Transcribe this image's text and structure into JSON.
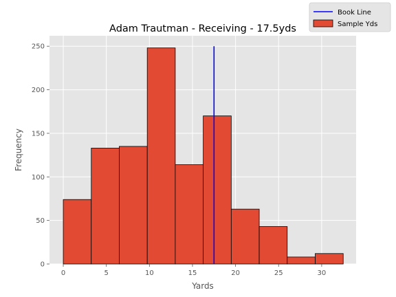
{
  "chart_data": {
    "type": "bar",
    "title": "Adam Trautman - Receiving - 17.5yds",
    "xlabel": "Yards",
    "ylabel": "Frequency",
    "xlim": [
      -1.6,
      34.0
    ],
    "ylim": [
      0,
      262
    ],
    "xticks": [
      0,
      5,
      10,
      15,
      20,
      25,
      30
    ],
    "yticks": [
      0,
      50,
      100,
      150,
      200,
      250
    ],
    "grid": true,
    "legend_position": "top-right",
    "bins": [
      {
        "start": 0.0,
        "end": 3.25,
        "value": 74
      },
      {
        "start": 3.25,
        "end": 6.5,
        "value": 133
      },
      {
        "start": 6.5,
        "end": 9.75,
        "value": 135
      },
      {
        "start": 9.75,
        "end": 13.0,
        "value": 248
      },
      {
        "start": 13.0,
        "end": 16.25,
        "value": 114
      },
      {
        "start": 16.25,
        "end": 19.5,
        "value": 170
      },
      {
        "start": 19.5,
        "end": 22.75,
        "value": 63
      },
      {
        "start": 22.75,
        "end": 26.0,
        "value": 43
      },
      {
        "start": 26.0,
        "end": 29.25,
        "value": 8
      },
      {
        "start": 29.25,
        "end": 32.5,
        "value": 12
      }
    ],
    "series": [
      {
        "name": "Sample Yds",
        "kind": "histogram",
        "color": "#E24A33",
        "edgecolor": "#000000"
      },
      {
        "name": "Book Line",
        "kind": "vline",
        "x": 17.5,
        "y_range": [
          0,
          250
        ],
        "color": "#0000FF"
      }
    ]
  }
}
